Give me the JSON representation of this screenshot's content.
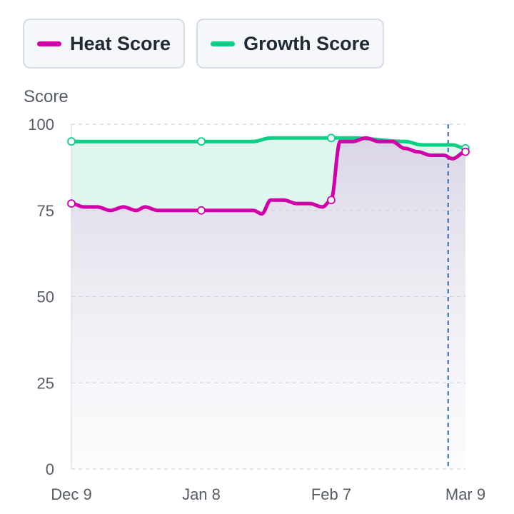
{
  "legend": {
    "heat_label": "Heat Score",
    "growth_label": "Growth Score"
  },
  "colors": {
    "heat": "#d100a8",
    "growth": "#0ccf86",
    "grid": "#cfd4db",
    "marker_line": "#2e6db4",
    "text": "#555c66"
  },
  "chart_data": {
    "type": "line",
    "title": "",
    "ylabel": "Score",
    "xlabel": "",
    "ylim": [
      0,
      100
    ],
    "yticks": [
      0,
      25,
      50,
      75,
      100
    ],
    "x_range": [
      "2023-12-09",
      "2024-03-09"
    ],
    "xticks": [
      {
        "label": "Dec 9",
        "date": "2023-12-09"
      },
      {
        "label": "Jan 8",
        "date": "2024-01-08"
      },
      {
        "label": "Feb 7",
        "date": "2024-02-07"
      },
      {
        "label": "Mar 9",
        "date": "2024-03-09"
      }
    ],
    "highlight_date": "2024-03-05",
    "grid": true,
    "legend_position": "top-left",
    "series": [
      {
        "name": "Heat Score",
        "color": "#d100a8",
        "points": [
          [
            "2023-12-09",
            77
          ],
          [
            "2023-12-12",
            76
          ],
          [
            "2023-12-15",
            76
          ],
          [
            "2023-12-18",
            75
          ],
          [
            "2023-12-21",
            76
          ],
          [
            "2023-12-24",
            75
          ],
          [
            "2023-12-26",
            76
          ],
          [
            "2023-12-29",
            75
          ],
          [
            "2024-01-01",
            75
          ],
          [
            "2024-01-08",
            75
          ],
          [
            "2024-01-15",
            75
          ],
          [
            "2024-01-20",
            75
          ],
          [
            "2024-01-22",
            74
          ],
          [
            "2024-01-24",
            78
          ],
          [
            "2024-01-27",
            78
          ],
          [
            "2024-01-30",
            77
          ],
          [
            "2024-02-02",
            77
          ],
          [
            "2024-02-05",
            76
          ],
          [
            "2024-02-07",
            78
          ],
          [
            "2024-02-09",
            95
          ],
          [
            "2024-02-12",
            95
          ],
          [
            "2024-02-15",
            96
          ],
          [
            "2024-02-18",
            95
          ],
          [
            "2024-02-21",
            95
          ],
          [
            "2024-02-24",
            93
          ],
          [
            "2024-02-27",
            92
          ],
          [
            "2024-03-01",
            91
          ],
          [
            "2024-03-04",
            91
          ],
          [
            "2024-03-06",
            90
          ],
          [
            "2024-03-09",
            92
          ]
        ]
      },
      {
        "name": "Growth Score",
        "color": "#0ccf86",
        "points": [
          [
            "2023-12-09",
            95
          ],
          [
            "2024-01-08",
            95
          ],
          [
            "2024-01-20",
            95
          ],
          [
            "2024-01-24",
            96
          ],
          [
            "2024-02-07",
            96
          ],
          [
            "2024-02-12",
            96
          ],
          [
            "2024-02-24",
            95
          ],
          [
            "2024-02-28",
            94
          ],
          [
            "2024-03-06",
            94
          ],
          [
            "2024-03-09",
            93
          ]
        ]
      }
    ]
  }
}
